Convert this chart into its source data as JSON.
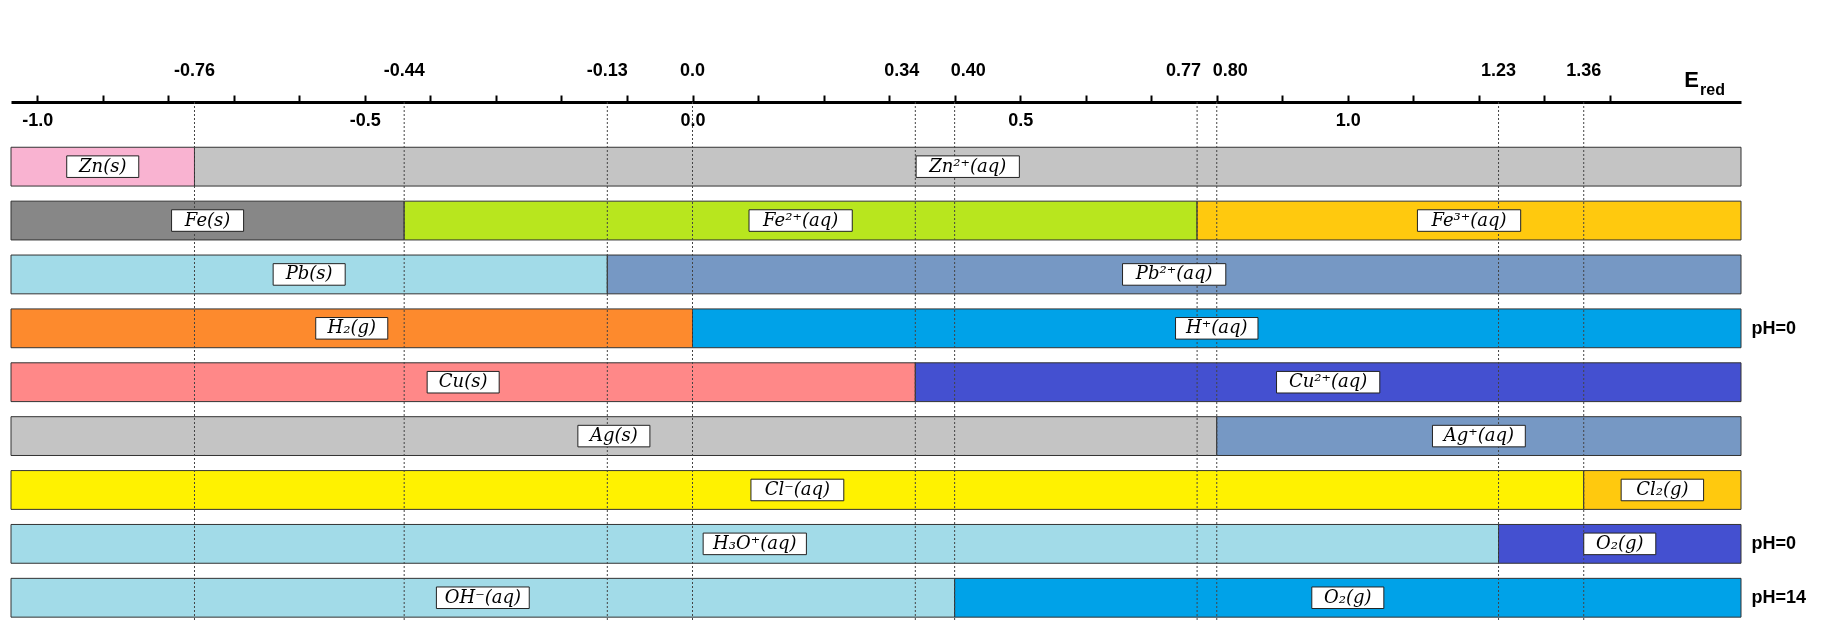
{
  "chart_data": {
    "type": "bar",
    "orientation": "horizontal",
    "xlabel": "E$_{red}$",
    "categories": [
      null,
      null,
      null,
      "pH=0",
      null,
      null,
      null,
      "pH=0",
      "pH=14"
    ],
    "xlim": [
      -1.04,
      1.6
    ],
    "xticks": [
      {
        "value": -1.0,
        "label": "-1.0"
      },
      {
        "value": -0.9,
        "label": null
      },
      {
        "value": -0.8,
        "label": null
      },
      {
        "value": -0.7,
        "label": null
      },
      {
        "value": -0.6,
        "label": null
      },
      {
        "value": -0.5,
        "label": "-0.5"
      },
      {
        "value": -0.4,
        "label": null
      },
      {
        "value": -0.3,
        "label": null
      },
      {
        "value": -0.2,
        "label": null
      },
      {
        "value": -0.1,
        "label": null
      },
      {
        "value": 0.0,
        "label": "0.0"
      },
      {
        "value": 0.1,
        "label": null
      },
      {
        "value": 0.2,
        "label": null
      },
      {
        "value": 0.3,
        "label": null
      },
      {
        "value": 0.4,
        "label": null
      },
      {
        "value": 0.5,
        "label": "0.5"
      },
      {
        "value": 0.6,
        "label": null
      },
      {
        "value": 0.7,
        "label": null
      },
      {
        "value": 0.8,
        "label": null
      },
      {
        "value": 0.9,
        "label": null
      },
      {
        "value": 1.0,
        "label": "1.0"
      },
      {
        "value": 1.1,
        "label": null
      },
      {
        "value": 1.2,
        "label": null
      },
      {
        "value": 1.3,
        "label": null
      },
      {
        "value": 1.4,
        "label": null
      }
    ],
    "ref_lines": [
      {
        "axis": "x",
        "value": -0.76,
        "label": "-0.76"
      },
      {
        "axis": "x",
        "value": -0.44,
        "label": "-0.44"
      },
      {
        "axis": "x",
        "value": -0.13,
        "label": "-0.13"
      },
      {
        "axis": "x",
        "value": 0.0,
        "label": "0.0"
      },
      {
        "axis": "x",
        "value": 0.34,
        "label": "0.34"
      },
      {
        "axis": "x",
        "value": 0.4,
        "label": "0.40"
      },
      {
        "axis": "x",
        "value": 0.77,
        "label": "0.77"
      },
      {
        "axis": "x",
        "value": 0.8,
        "label": "0.80"
      },
      {
        "axis": "x",
        "value": 1.23,
        "label": "1.23"
      },
      {
        "axis": "x",
        "value": 1.36,
        "label": "1.36"
      }
    ],
    "series": [
      {
        "name": "Zn(s)",
        "color": "#f9b3d1",
        "base": [
          -1.04,
          null,
          null,
          null,
          null,
          null,
          null,
          null,
          null
        ],
        "values": [
          0.28,
          null,
          null,
          null,
          null,
          null,
          null,
          null,
          null
        ]
      },
      {
        "name": "Zn²⁺(aq)",
        "color": "#c4c4c4",
        "base": [
          -0.76,
          null,
          null,
          null,
          null,
          null,
          null,
          null,
          null
        ],
        "values": [
          2.36,
          null,
          null,
          null,
          null,
          null,
          null,
          null,
          null
        ]
      },
      {
        "name": "Fe(s)",
        "color": "#878787",
        "base": [
          null,
          -1.04,
          null,
          null,
          null,
          null,
          null,
          null,
          null
        ],
        "values": [
          null,
          0.6,
          null,
          null,
          null,
          null,
          null,
          null,
          null
        ]
      },
      {
        "name": "Fe²⁺(aq)",
        "color": "#b8e61e",
        "base": [
          null,
          -0.44,
          null,
          null,
          null,
          null,
          null,
          null,
          null
        ],
        "values": [
          null,
          1.21,
          null,
          null,
          null,
          null,
          null,
          null,
          null
        ]
      },
      {
        "name": "Fe³⁺(aq)",
        "color": "#ffc90e",
        "base": [
          null,
          0.77,
          null,
          null,
          null,
          null,
          null,
          null,
          null
        ],
        "values": [
          null,
          0.83,
          null,
          null,
          null,
          null,
          null,
          null,
          null
        ]
      },
      {
        "name": "Pb(s)",
        "color": "#a2dbe8",
        "base": [
          null,
          null,
          -1.04,
          null,
          null,
          null,
          null,
          null,
          null
        ],
        "values": [
          null,
          null,
          0.91,
          null,
          null,
          null,
          null,
          null,
          null
        ]
      },
      {
        "name": "Pb²⁺(aq)",
        "color": "#7698c4",
        "base": [
          null,
          null,
          -0.13,
          null,
          null,
          null,
          null,
          null,
          null
        ],
        "values": [
          null,
          null,
          1.73,
          null,
          null,
          null,
          null,
          null,
          null
        ]
      },
      {
        "name": "H₂(g)",
        "color": "#fd8a2d",
        "base": [
          null,
          null,
          null,
          -1.04,
          null,
          null,
          null,
          null,
          null
        ],
        "values": [
          null,
          null,
          null,
          1.04,
          null,
          null,
          null,
          null,
          null
        ]
      },
      {
        "name": "H⁺(aq)",
        "color": "#00a2e8",
        "base": [
          null,
          null,
          null,
          0.0,
          null,
          null,
          null,
          null,
          null
        ],
        "values": [
          null,
          null,
          null,
          1.6,
          null,
          null,
          null,
          null,
          null
        ]
      },
      {
        "name": "Cu(s)",
        "color": "#ff8888",
        "base": [
          null,
          null,
          null,
          null,
          -1.04,
          null,
          null,
          null,
          null
        ],
        "values": [
          null,
          null,
          null,
          null,
          1.38,
          null,
          null,
          null,
          null
        ]
      },
      {
        "name": "Cu²⁺(aq)",
        "color": "#4450d0",
        "base": [
          null,
          null,
          null,
          null,
          0.34,
          null,
          null,
          null,
          null
        ],
        "values": [
          null,
          null,
          null,
          null,
          1.26,
          null,
          null,
          null,
          null
        ]
      },
      {
        "name": "Ag(s)",
        "color": "#c4c4c4",
        "base": [
          null,
          null,
          null,
          null,
          null,
          -1.04,
          null,
          null,
          null
        ],
        "values": [
          null,
          null,
          null,
          null,
          null,
          1.84,
          null,
          null,
          null
        ]
      },
      {
        "name": "Ag⁺(aq)",
        "color": "#7698c4",
        "base": [
          null,
          null,
          null,
          null,
          null,
          0.8,
          null,
          null,
          null
        ],
        "values": [
          null,
          null,
          null,
          null,
          null,
          0.8,
          null,
          null,
          null
        ]
      },
      {
        "name": "Cl⁻(aq)",
        "color": "#fff200",
        "base": [
          null,
          null,
          null,
          null,
          null,
          null,
          -1.04,
          null,
          null
        ],
        "values": [
          null,
          null,
          null,
          null,
          null,
          null,
          2.4,
          null,
          null
        ]
      },
      {
        "name": "Cl₂(g)",
        "color": "#ffc90e",
        "base": [
          null,
          null,
          null,
          null,
          null,
          null,
          1.36,
          null,
          null
        ],
        "values": [
          null,
          null,
          null,
          null,
          null,
          null,
          0.24,
          null,
          null
        ]
      },
      {
        "name": "H₃O⁺(aq)",
        "color": "#a2dbe8",
        "base": [
          null,
          null,
          null,
          null,
          null,
          null,
          null,
          -1.04,
          null
        ],
        "values": [
          null,
          null,
          null,
          null,
          null,
          null,
          null,
          2.27,
          null
        ]
      },
      {
        "name": "O₂(g)",
        "color": "#4450d0",
        "base": [
          null,
          null,
          null,
          null,
          null,
          null,
          null,
          1.23,
          null
        ],
        "values": [
          null,
          null,
          null,
          null,
          null,
          null,
          null,
          0.37,
          null
        ]
      },
      {
        "name": "OH⁻(aq)",
        "color": "#a2dbe8",
        "base": [
          null,
          null,
          null,
          null,
          null,
          null,
          null,
          null,
          -1.04
        ],
        "values": [
          null,
          null,
          null,
          null,
          null,
          null,
          null,
          null,
          1.44
        ]
      },
      {
        "name": "O₂(g)",
        "color": "#00a2e8",
        "base": [
          null,
          null,
          null,
          null,
          null,
          null,
          null,
          null,
          0.4
        ],
        "values": [
          null,
          null,
          null,
          null,
          null,
          null,
          null,
          null,
          1.2
        ]
      }
    ]
  }
}
